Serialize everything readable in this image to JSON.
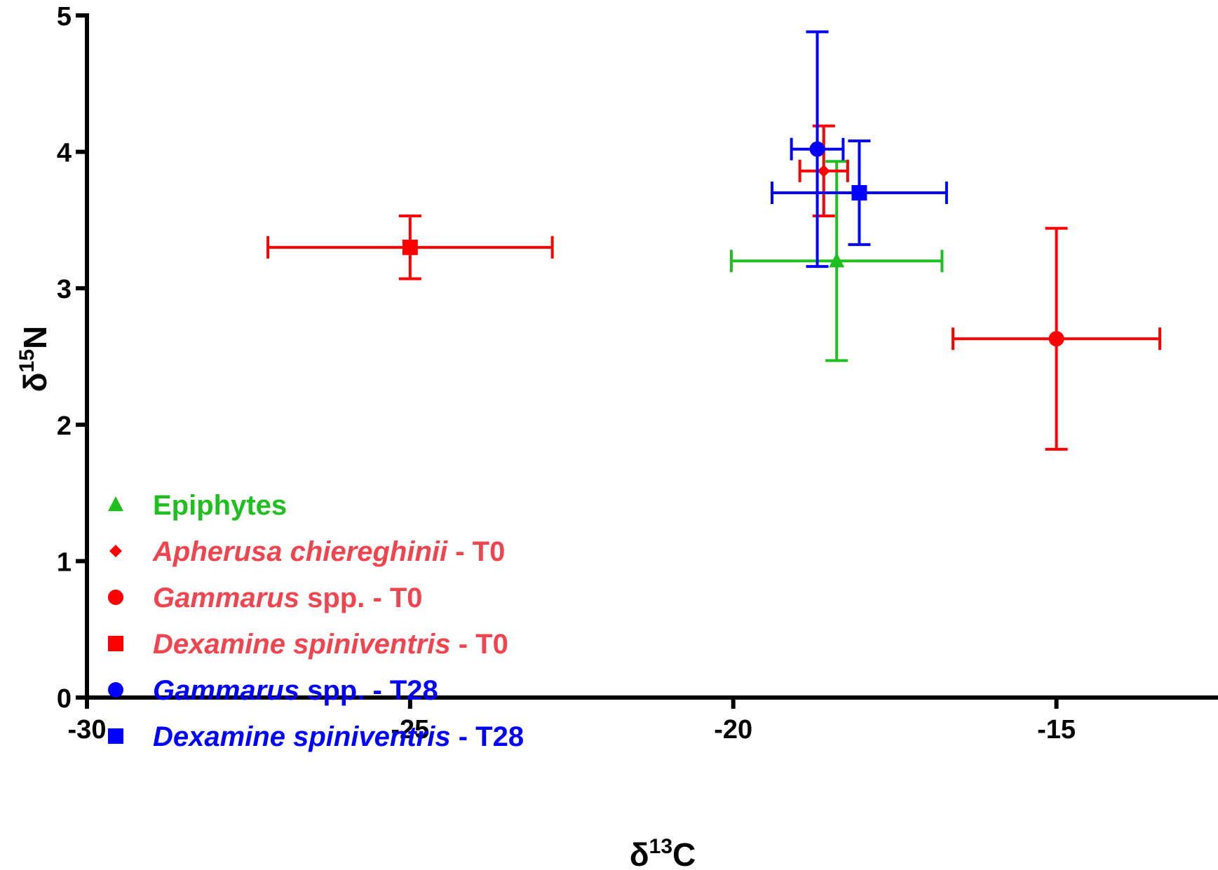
{
  "chart_data": {
    "type": "scatter",
    "xlabel": {
      "symbol": "δ",
      "sup": "13",
      "element": "C"
    },
    "ylabel": {
      "symbol": "δ",
      "sup": "15",
      "element": "N"
    },
    "xlim": [
      -30,
      -12.5
    ],
    "ylim": [
      0,
      5
    ],
    "x_ticks": [
      -30,
      -25,
      -20,
      -15
    ],
    "x_tick_labels": [
      "-30",
      "-25",
      "-20",
      "-15"
    ],
    "y_ticks": [
      0,
      1,
      2,
      3,
      4,
      5
    ],
    "y_tick_labels": [
      "0",
      "1",
      "2",
      "3",
      "4",
      "5"
    ],
    "grid": false,
    "legend_position": "bottom-left",
    "series": [
      {
        "name_parts": [
          {
            "text": "Epiphytes",
            "italic": false
          }
        ],
        "marker": "triangle",
        "color": "#1fbf1f",
        "points": [
          {
            "x": -18.4,
            "y": 3.2,
            "xerr": 1.63,
            "yerr": 0.73
          }
        ]
      },
      {
        "name_parts": [
          {
            "text": "Apherusa chiereghinii",
            "italic": true
          },
          {
            "text": " - T0",
            "italic": false
          }
        ],
        "marker": "diamond",
        "color": "#ff0000",
        "points": [
          {
            "x": -18.6,
            "y": 3.86,
            "xerr": 0.37,
            "yerr": 0.33
          }
        ]
      },
      {
        "name_parts": [
          {
            "text": "Gammarus",
            "italic": true
          },
          {
            "text": " spp. - T0",
            "italic": false
          }
        ],
        "marker": "circle",
        "color": "#ff0000",
        "points": [
          {
            "x": -15.0,
            "y": 2.63,
            "xerr": 1.6,
            "yerr": 0.81
          }
        ]
      },
      {
        "name_parts": [
          {
            "text": "Dexamine spiniventris",
            "italic": true
          },
          {
            "text": " - T0",
            "italic": false
          }
        ],
        "marker": "square",
        "color": "#ff0000",
        "points": [
          {
            "x": -25.0,
            "y": 3.3,
            "xerr": 2.2,
            "yerr": 0.23
          }
        ]
      },
      {
        "name_parts": [
          {
            "text": "Gammarus",
            "italic": true
          },
          {
            "text": " spp. - T28",
            "italic": false
          }
        ],
        "marker": "circle",
        "color": "#0000ff",
        "points": [
          {
            "x": -18.7,
            "y": 4.02,
            "xerr": 0.4,
            "yerr": 0.86
          }
        ]
      },
      {
        "name_parts": [
          {
            "text": "Dexamine spiniventris",
            "italic": true
          },
          {
            "text": " - T28",
            "italic": false
          }
        ],
        "marker": "square",
        "color": "#0000ff",
        "points": [
          {
            "x": -18.05,
            "y": 3.7,
            "xerr": 1.35,
            "yerr": 0.38
          }
        ]
      }
    ],
    "legend_text_colors": {
      "#1fbf1f": "#1fbf1f",
      "#ff0000": "#f0444e",
      "#0000ff": "#0000ff"
    }
  }
}
